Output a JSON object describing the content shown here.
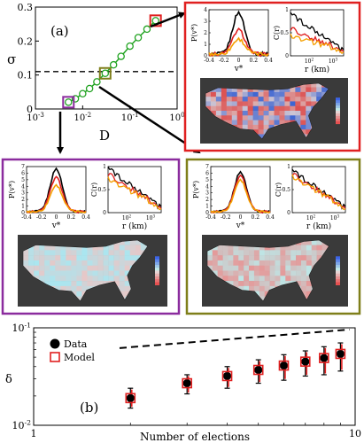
{
  "chart_data": [
    {
      "id": "panel-a",
      "type": "line",
      "panel_label": "(a)",
      "xlabel": "D",
      "ylabel": "σ",
      "xscale": "log",
      "xlim": [
        0.001,
        1
      ],
      "ylim": [
        0,
        0.3
      ],
      "xtick_labels": [
        "10",
        "10",
        "10",
        "10"
      ],
      "xtick_exponents": [
        "-3",
        "-2",
        "-1",
        "0"
      ],
      "ytick_labels": [
        "0",
        "0.1",
        "0.2",
        "0.3"
      ],
      "reference_line_y": 0.11,
      "series": [
        {
          "x": [
            0.005,
            0.007,
            0.01,
            0.014,
            0.02,
            0.03,
            0.045,
            0.065,
            0.1,
            0.15,
            0.23,
            0.35
          ],
          "y": [
            0.02,
            0.03,
            0.045,
            0.06,
            0.08,
            0.105,
            0.13,
            0.155,
            0.185,
            0.21,
            0.235,
            0.26
          ],
          "color": "#22a322"
        }
      ],
      "highlights": [
        {
          "x": 0.005,
          "y": 0.02,
          "color": "#8b2c9e"
        },
        {
          "x": 0.03,
          "y": 0.105,
          "color": "#7f7f1a"
        },
        {
          "x": 0.35,
          "y": 0.26,
          "color": "#e02020"
        }
      ]
    },
    {
      "id": "panel-b",
      "type": "scatter",
      "panel_label": "(b)",
      "xlabel": "Number of elections",
      "ylabel": "δ",
      "xscale": "log",
      "yscale": "log",
      "xlim": [
        1,
        10
      ],
      "ylim": [
        0.01,
        0.1
      ],
      "xtick_labels": [
        "1",
        "10"
      ],
      "ytick_labels": [
        "10",
        "10"
      ],
      "ytick_exponents": [
        "-2",
        "-1"
      ],
      "legend": "top-left",
      "series": [
        {
          "name": "Data",
          "marker": "filled-circle",
          "x": [
            2,
            3,
            4,
            5,
            6,
            7,
            8,
            9
          ],
          "y": [
            0.019,
            0.027,
            0.032,
            0.037,
            0.041,
            0.045,
            0.049,
            0.054
          ],
          "yerr_low": [
            0.015,
            0.021,
            0.024,
            0.027,
            0.029,
            0.032,
            0.033,
            0.036
          ],
          "yerr_high": [
            0.024,
            0.033,
            0.04,
            0.047,
            0.053,
            0.058,
            0.064,
            0.07
          ]
        },
        {
          "name": "Model",
          "marker": "open-square",
          "color": "#e02020",
          "x": [
            2,
            3,
            4,
            5,
            6,
            7,
            8,
            9
          ],
          "y": [
            0.019,
            0.027,
            0.032,
            0.037,
            0.041,
            0.045,
            0.049,
            0.054
          ]
        }
      ],
      "trend_line": {
        "x": [
          1.85,
          9.6
        ],
        "y": [
          0.062,
          0.096
        ]
      }
    }
  ],
  "insets": {
    "red": {
      "pdf": {
        "ylabel": "P(v*)",
        "xlabel": "v*",
        "yticks": [
          "0",
          "1",
          "2",
          "3",
          "4"
        ],
        "xticks": [
          "-0.4",
          "-0.2",
          "0",
          "0.2",
          "0.4"
        ]
      },
      "corr": {
        "ylabel": "C(r)",
        "xlabel": "r (km)",
        "yticks": [
          "0",
          "0.5",
          "1"
        ],
        "xticks": [
          "10",
          "10"
        ],
        "xtick_exponents": [
          "2",
          "3"
        ]
      }
    },
    "purple": {
      "pdf": {
        "ylabel": "P(v*)",
        "xlabel": "v*",
        "yticks": [
          "0",
          "1",
          "2",
          "3",
          "4",
          "5",
          "6",
          "7"
        ],
        "xticks": [
          "-0.4",
          "-0.2",
          "0",
          "0.2",
          "0.4"
        ]
      },
      "corr": {
        "ylabel": "C(r)",
        "xlabel": "r (km)",
        "yticks": [
          "0",
          "0.5",
          "1"
        ],
        "xticks": [
          "10",
          "10"
        ],
        "xtick_exponents": [
          "2",
          "3"
        ]
      }
    },
    "olive": {
      "pdf": {
        "ylabel": "P(v*)",
        "xlabel": "v*",
        "yticks": [
          "0",
          "1",
          "2",
          "3",
          "4",
          "5",
          "6",
          "7"
        ],
        "xticks": [
          "-0.4",
          "-0.2",
          "0",
          "0.2",
          "0.4"
        ]
      },
      "corr": {
        "ylabel": "C(r)",
        "xlabel": "r (km)",
        "yticks": [
          "0",
          "0.5",
          "1"
        ],
        "xticks": [
          "10",
          "10"
        ],
        "xtick_exponents": [
          "2",
          "3"
        ]
      }
    }
  },
  "colors": {
    "green": "#22a322",
    "red": "#e02020",
    "purple": "#8b2c9e",
    "olive": "#7f7f1a",
    "orange": "#f5a000",
    "black": "#000000",
    "map_background": "#3a3a3a"
  }
}
